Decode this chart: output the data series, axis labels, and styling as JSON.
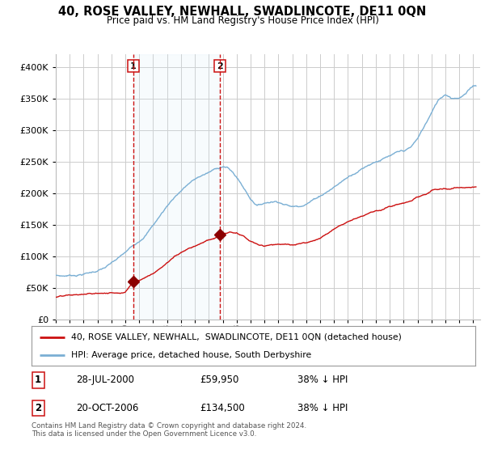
{
  "title": "40, ROSE VALLEY, NEWHALL, SWADLINCOTE, DE11 0QN",
  "subtitle": "Price paid vs. HM Land Registry's House Price Index (HPI)",
  "hpi_color": "#7aafd4",
  "price_color": "#cc1111",
  "marker_color": "#8b0000",
  "vline_color": "#cc1111",
  "shade_color": "#d8eaf7",
  "bg_color": "#ffffff",
  "grid_color": "#cccccc",
  "ylim": [
    0,
    420000
  ],
  "yticks": [
    0,
    50000,
    100000,
    150000,
    200000,
    250000,
    300000,
    350000,
    400000
  ],
  "legend_label_price": "40, ROSE VALLEY, NEWHALL,  SWADLINCOTE, DE11 0QN (detached house)",
  "legend_label_hpi": "HPI: Average price, detached house, South Derbyshire",
  "transaction1_date": "28-JUL-2000",
  "transaction1_price": "£59,950",
  "transaction1_pct": "38% ↓ HPI",
  "transaction2_date": "20-OCT-2006",
  "transaction2_price": "£134,500",
  "transaction2_pct": "38% ↓ HPI",
  "footer": "Contains HM Land Registry data © Crown copyright and database right 2024.\nThis data is licensed under the Open Government Licence v3.0.",
  "marker1_x": 2000.57,
  "marker1_y": 59950,
  "marker2_x": 2006.8,
  "marker2_y": 134500,
  "xmin": 1995,
  "xmax": 2025.5
}
